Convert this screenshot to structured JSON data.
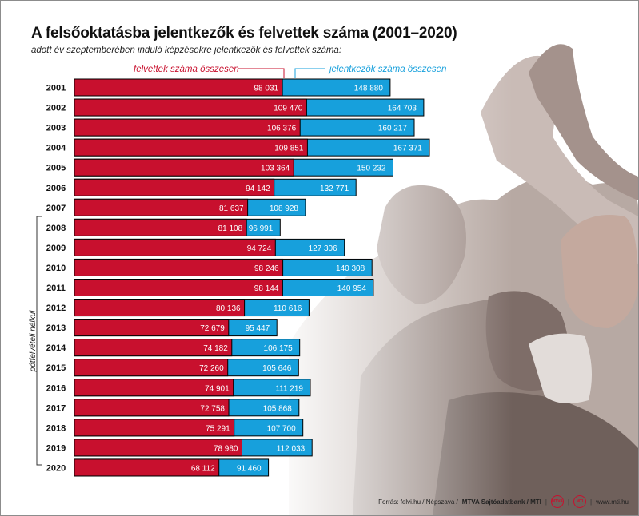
{
  "title": "A felsőoktatásba jelentkezők és felvettek száma (2001–2020)",
  "subtitle": "adott év szeptemberében induló képzésekre jelentkezők és felvettek száma:",
  "bracket_label": "pótfelvételi nélkül",
  "footer": {
    "source": "Forrás: felvi.hu / Népszava /",
    "agency": "MTVA Sajtóadatbank / MTI",
    "logo1": "MTVA",
    "logo2": "MTI",
    "url": "www.mti.hu"
  },
  "colors": {
    "admitted": "#c8102e",
    "applicants": "#17a0dc",
    "outline": "#000000"
  },
  "chart_data": {
    "type": "bar",
    "orientation": "horizontal",
    "stacking": "overlapping",
    "categories": [
      "2001",
      "2002",
      "2003",
      "2004",
      "2005",
      "2006",
      "2007",
      "2008",
      "2009",
      "2010",
      "2011",
      "2012",
      "2013",
      "2014",
      "2015",
      "2016",
      "2017",
      "2018",
      "2019",
      "2020"
    ],
    "series": [
      {
        "name": "felvettek száma összesen",
        "color": "#c8102e",
        "values": [
          98031,
          109470,
          106376,
          109851,
          103364,
          94142,
          81637,
          81108,
          94724,
          98246,
          98144,
          80136,
          72679,
          74182,
          72260,
          74901,
          72758,
          75291,
          78980,
          68112
        ]
      },
      {
        "name": "jelentkezők száma összesen",
        "color": "#17a0dc",
        "values": [
          148880,
          164703,
          160217,
          167371,
          150232,
          132771,
          108928,
          96991,
          127306,
          140308,
          140954,
          110616,
          95447,
          106175,
          105646,
          111219,
          105868,
          107700,
          112033,
          91460
        ]
      }
    ],
    "value_labels": {
      "admitted": [
        "98 031",
        "109 470",
        "106 376",
        "109 851",
        "103 364",
        "94 142",
        "81 637",
        "81 108",
        "94 724",
        "98 246",
        "98 144",
        "80 136",
        "72 679",
        "74 182",
        "72 260",
        "74 901",
        "72 758",
        "75 291",
        "78 980",
        "68 112"
      ],
      "applicants": [
        "148 880",
        "164 703",
        "160 217",
        "167 371",
        "150 232",
        "132 771",
        "108 928",
        "96 991",
        "127 306",
        "140 308",
        "140 954",
        "110 616",
        "95 447",
        "106 175",
        "105 646",
        "111 219",
        "105 868",
        "107 700",
        "112 033",
        "91 460"
      ]
    },
    "grid": false,
    "legend": "top"
  }
}
